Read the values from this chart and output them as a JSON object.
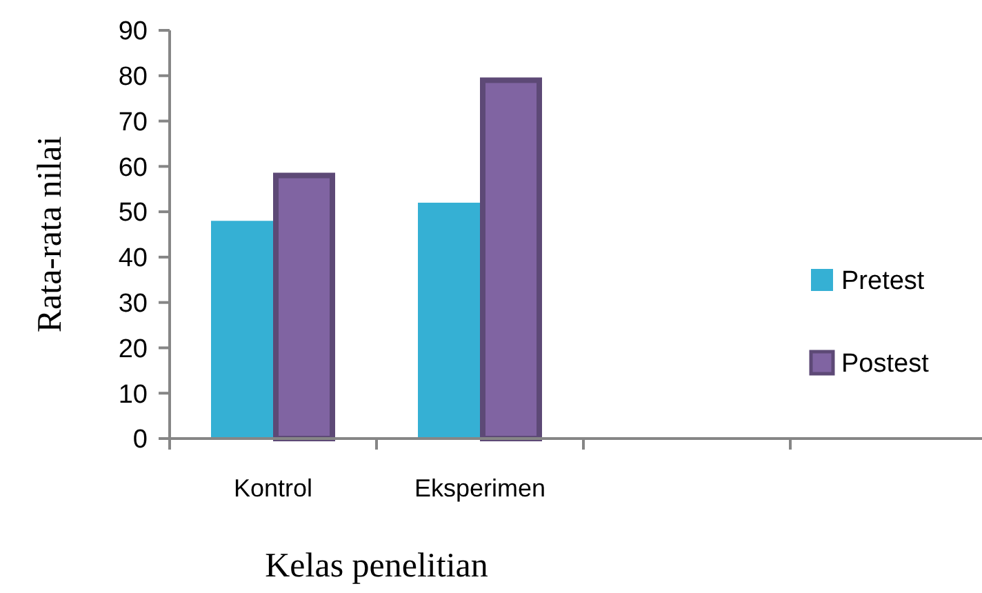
{
  "chart_data": {
    "type": "bar",
    "categories": [
      "Kontrol",
      "Eksperimen",
      null,
      null
    ],
    "series": [
      {
        "name": "Pretest",
        "color": "#35b0d4",
        "values": [
          48,
          52,
          null,
          null
        ]
      },
      {
        "name": "Postest",
        "color": "#8064a2",
        "values": [
          58,
          79,
          null,
          null
        ]
      }
    ],
    "xlabel": "Kelas penelitian",
    "ylabel": "Rata-rata nilai",
    "ylim": [
      0,
      90
    ],
    "yticks": [
      0,
      10,
      20,
      30,
      40,
      50,
      60,
      70,
      80,
      90
    ],
    "legend": "right",
    "grid": false
  }
}
